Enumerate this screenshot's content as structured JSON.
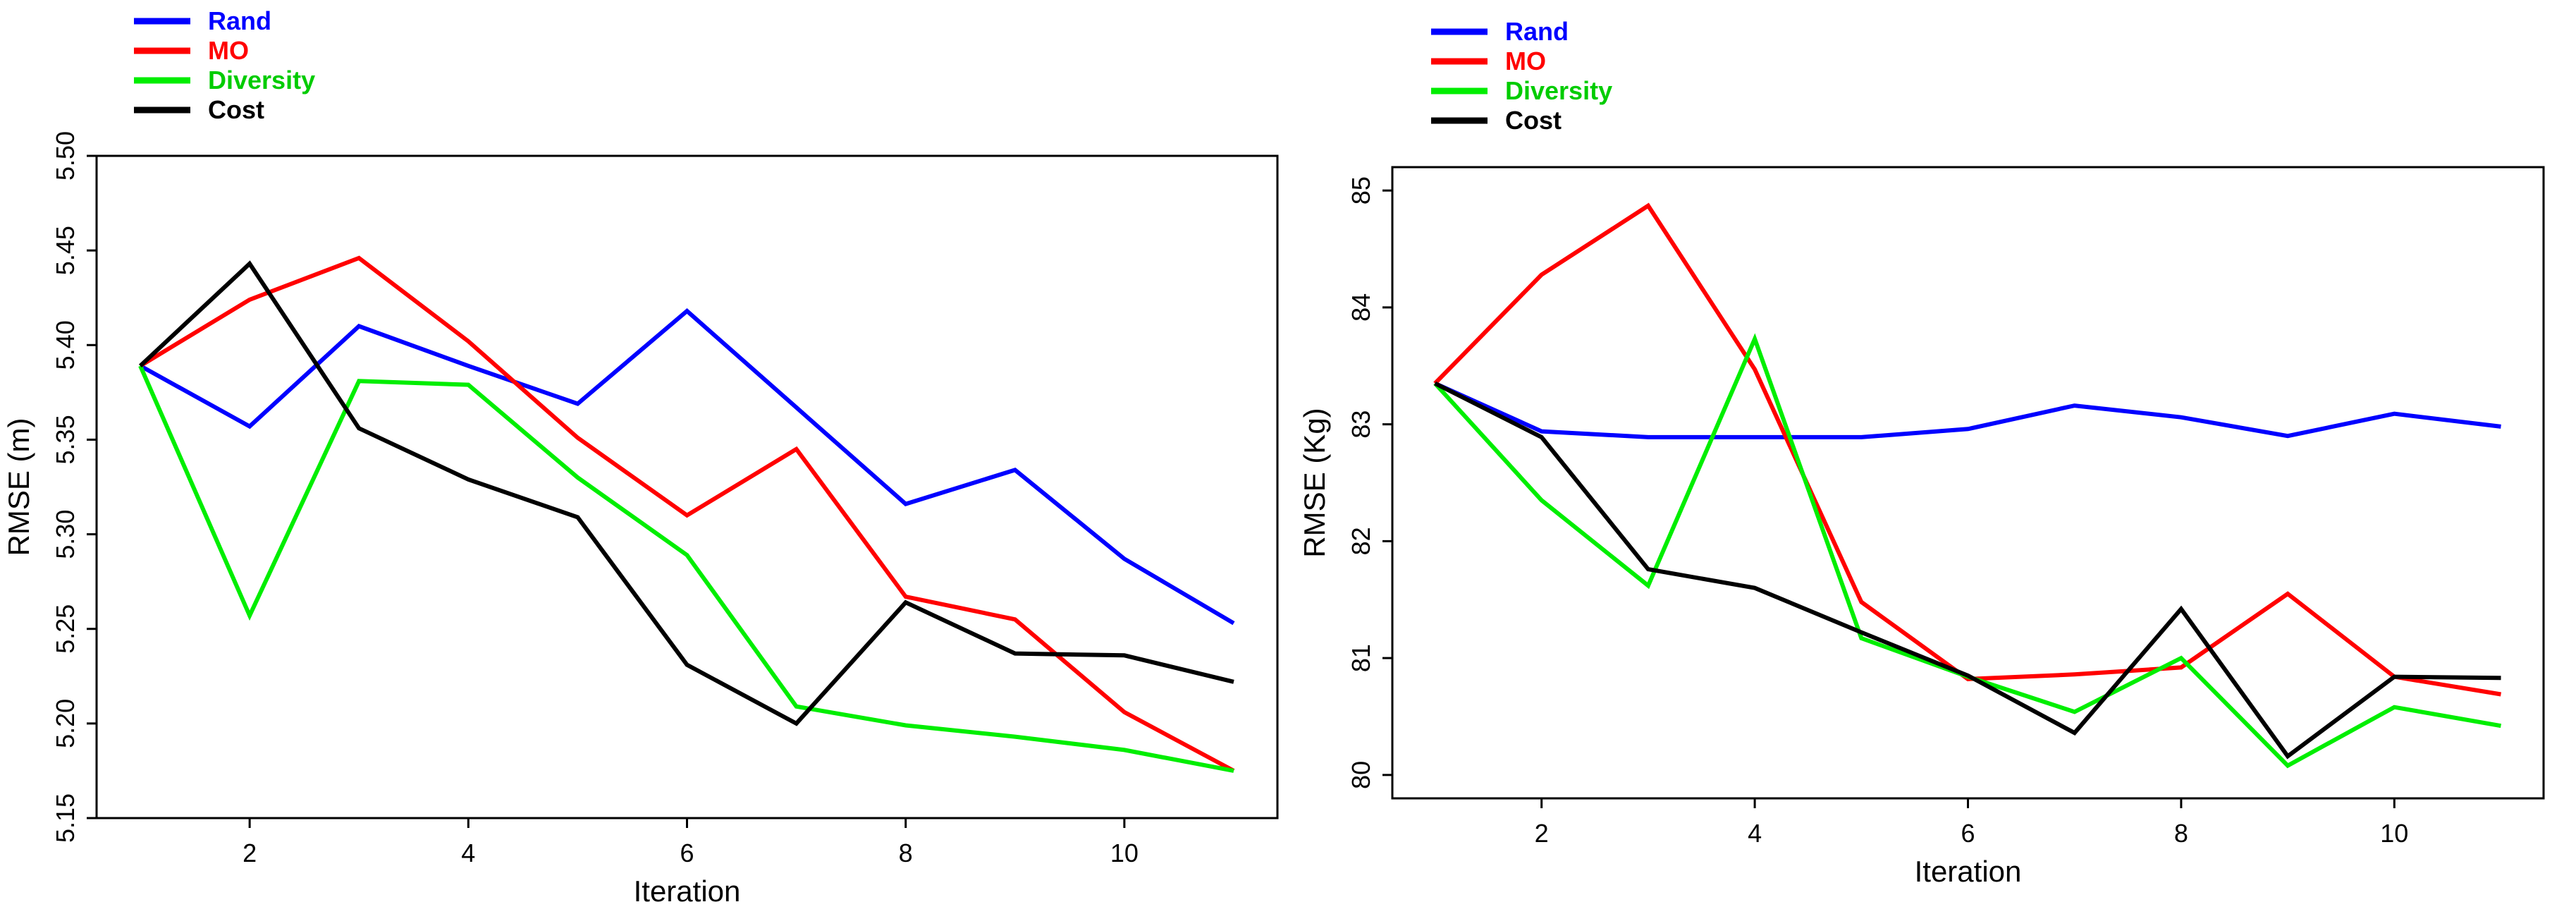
{
  "chart_data": [
    {
      "type": "line",
      "xlabel": "Iteration",
      "ylabel": "RMSE (m)",
      "xlim": [
        0.6,
        11.4
      ],
      "ylim": [
        5.15,
        5.5
      ],
      "x_ticks": [
        2,
        4,
        6,
        8,
        10
      ],
      "y_ticks": [
        5.15,
        5.2,
        5.25,
        5.3,
        5.35,
        5.4,
        5.45,
        5.5
      ],
      "y_tick_labels": [
        "5.15",
        "5.20",
        "5.25",
        "5.30",
        "5.35",
        "5.40",
        "5.45",
        "5.50"
      ],
      "legend_position": "top-left, outside plot",
      "x": [
        1,
        2,
        3,
        4,
        5,
        6,
        7,
        8,
        9,
        10,
        11
      ],
      "series": [
        {
          "name": "Rand",
          "color": "#0000ff",
          "values": [
            5.389,
            5.357,
            5.41,
            5.389,
            5.369,
            5.418,
            5.367,
            5.316,
            5.334,
            5.287,
            5.253
          ]
        },
        {
          "name": "MO",
          "color": "#ff0000",
          "values": [
            5.389,
            5.424,
            5.446,
            5.402,
            5.351,
            5.31,
            5.345,
            5.267,
            5.255,
            5.206,
            5.175
          ]
        },
        {
          "name": "Diversity",
          "color": "#00ee00",
          "values": [
            5.389,
            5.257,
            5.381,
            5.379,
            5.33,
            5.289,
            5.209,
            5.199,
            5.193,
            5.186,
            5.175
          ]
        },
        {
          "name": "Cost",
          "color": "#000000",
          "values": [
            5.389,
            5.443,
            5.356,
            5.329,
            5.309,
            5.231,
            5.2,
            5.264,
            5.237,
            5.236,
            5.222
          ]
        }
      ]
    },
    {
      "type": "line",
      "xlabel": "Iteration",
      "ylabel": "RMSE (Kg)",
      "xlim": [
        0.6,
        11.4
      ],
      "ylim": [
        79.8,
        85.2
      ],
      "x_ticks": [
        2,
        4,
        6,
        8,
        10
      ],
      "y_ticks": [
        80,
        81,
        82,
        83,
        84,
        85
      ],
      "y_tick_labels": [
        "80",
        "81",
        "82",
        "83",
        "84",
        "85"
      ],
      "legend_position": "top-left, outside plot",
      "x": [
        1,
        2,
        3,
        4,
        5,
        6,
        7,
        8,
        9,
        10,
        11
      ],
      "series": [
        {
          "name": "Rand",
          "color": "#0000ff",
          "values": [
            83.35,
            82.94,
            82.89,
            82.89,
            82.89,
            82.96,
            83.16,
            83.06,
            82.9,
            83.09,
            82.98
          ]
        },
        {
          "name": "MO",
          "color": "#ff0000",
          "values": [
            83.35,
            84.28,
            84.87,
            83.47,
            81.48,
            80.82,
            80.86,
            80.92,
            81.55,
            80.84,
            80.69
          ]
        },
        {
          "name": "Diversity",
          "color": "#00ee00",
          "values": [
            83.35,
            82.35,
            81.62,
            83.73,
            81.17,
            80.84,
            80.54,
            81.0,
            80.08,
            80.58,
            80.42
          ]
        },
        {
          "name": "Cost",
          "color": "#000000",
          "values": [
            83.35,
            82.89,
            81.76,
            81.6,
            81.22,
            80.85,
            80.36,
            81.42,
            80.16,
            80.84,
            80.83
          ]
        }
      ]
    }
  ]
}
